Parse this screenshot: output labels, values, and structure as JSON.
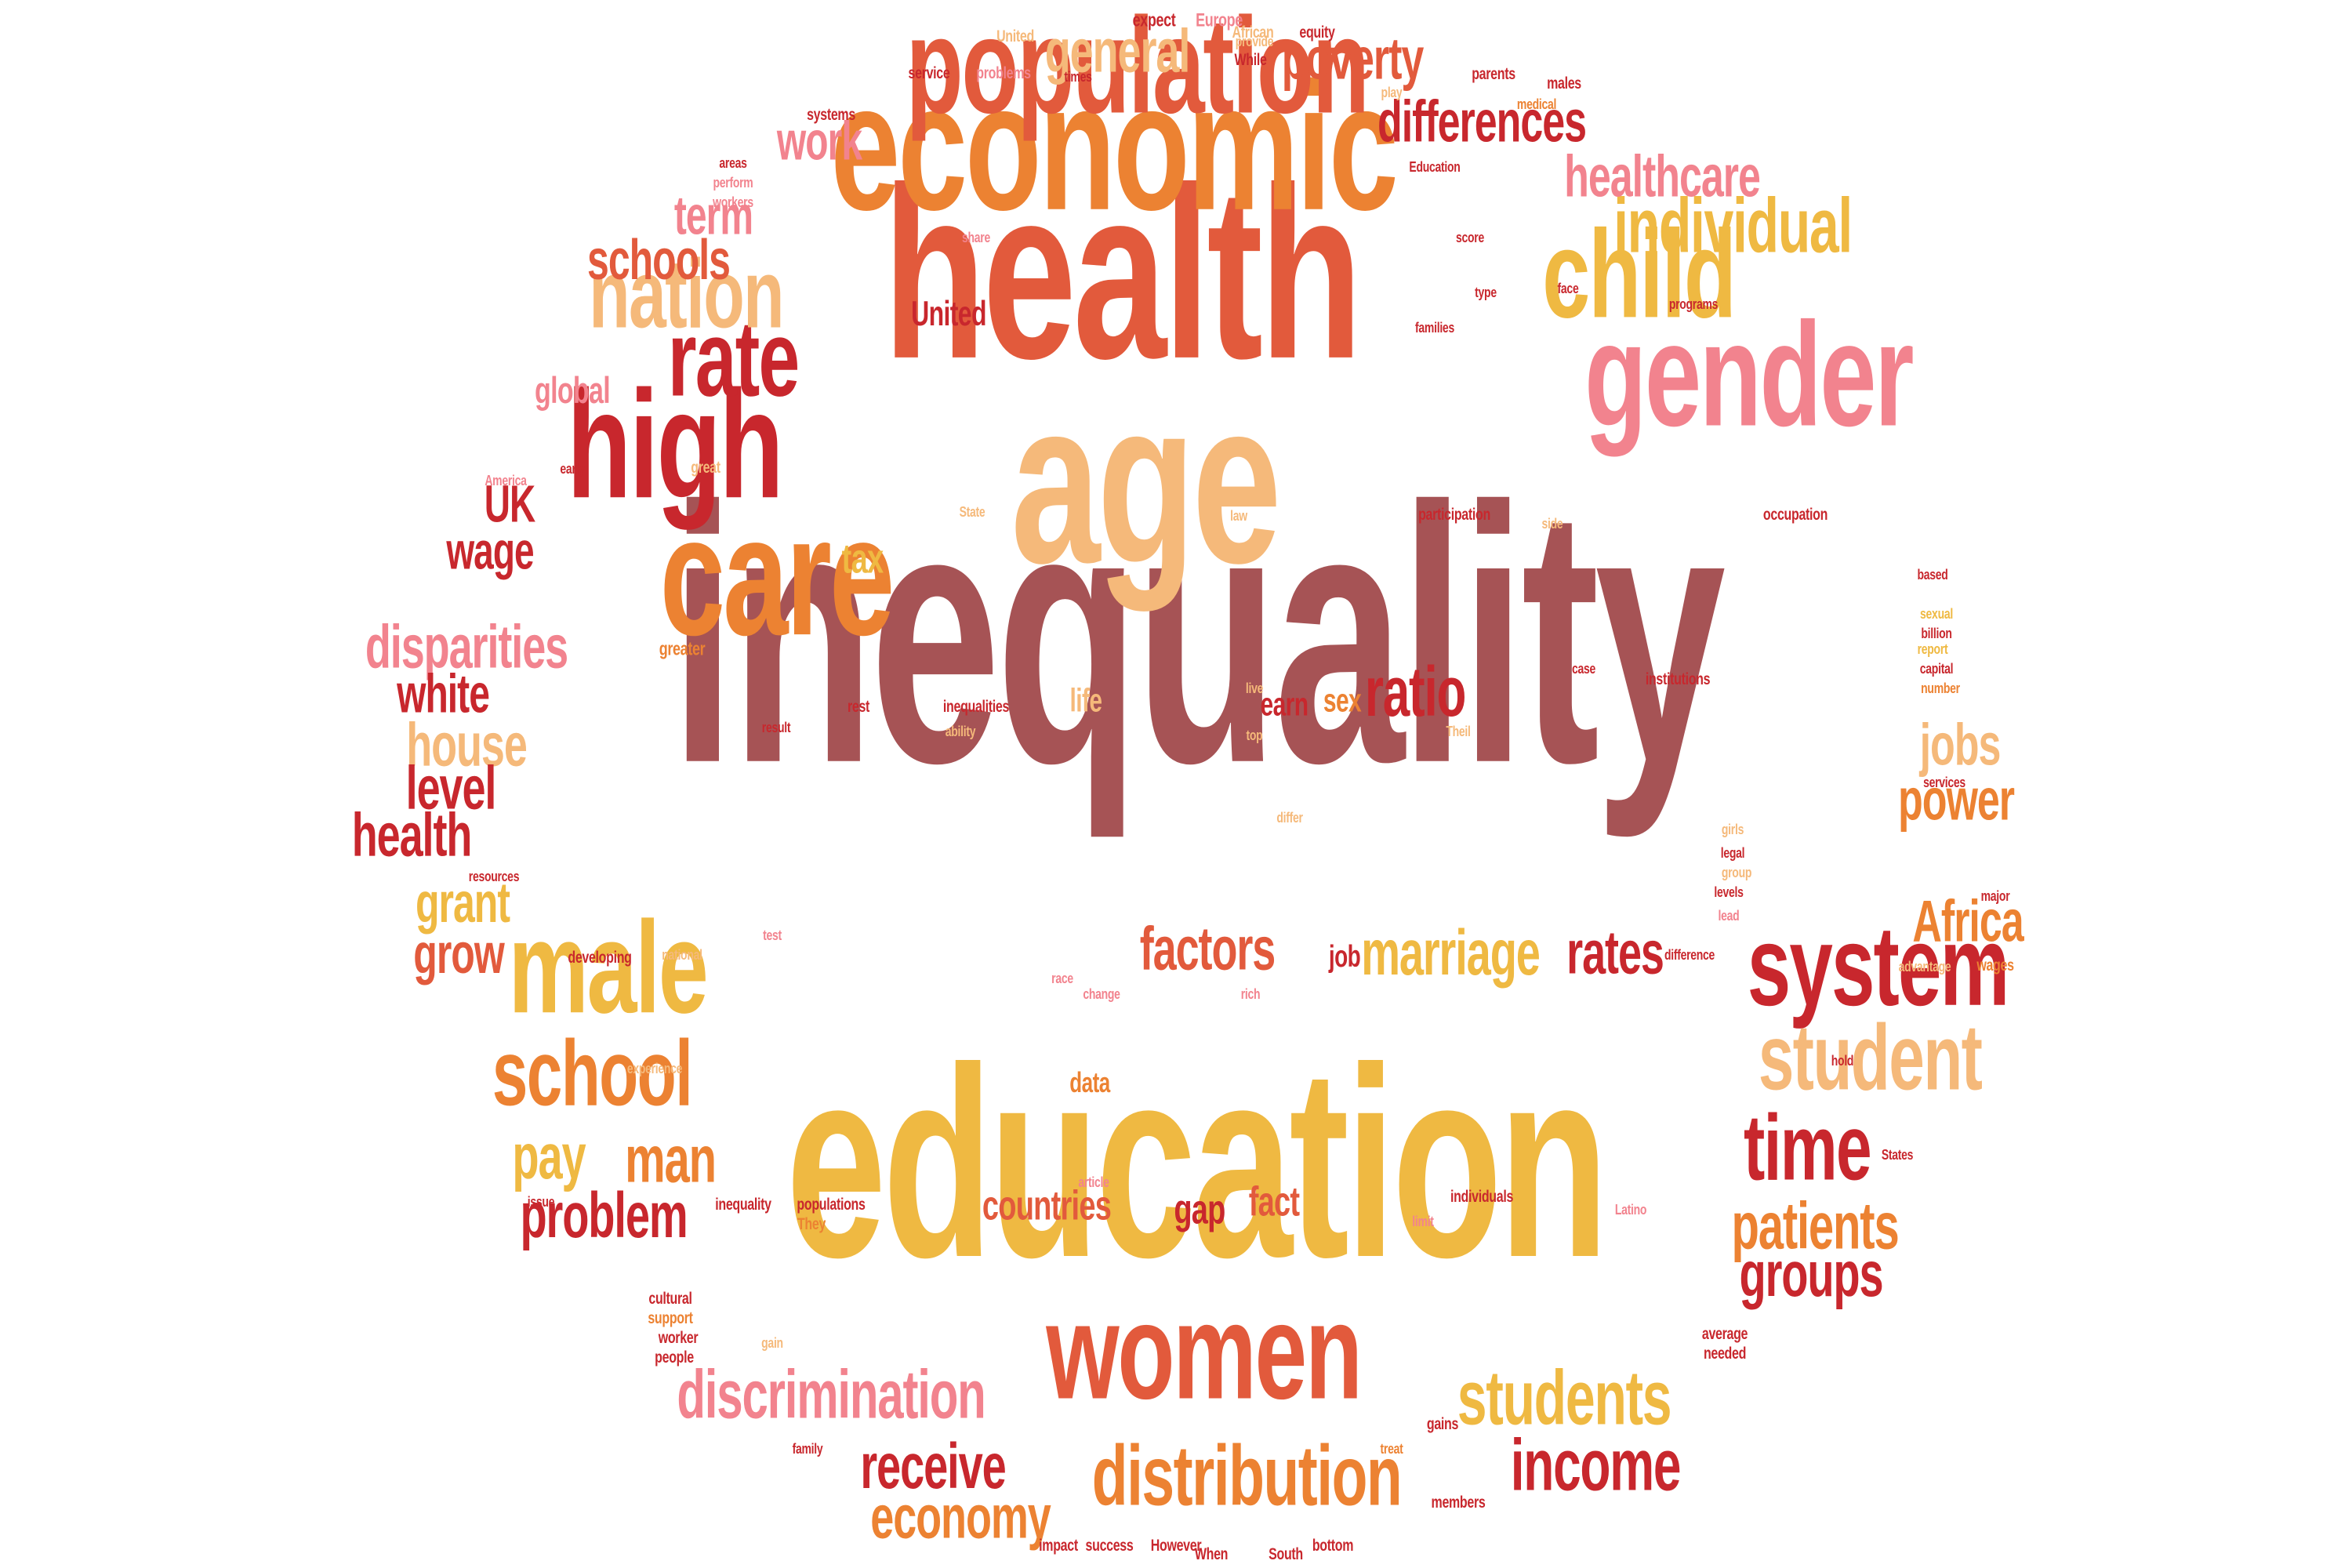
{
  "colors": {
    "maroon": "#a65355",
    "red": "#c8272d",
    "vermilion": "#e25a3c",
    "orange": "#ec8232",
    "yellow": "#efb942",
    "peach": "#f5b97a",
    "pink": "#f2838e"
  },
  "words": [
    {
      "text": "inequality",
      "color": "maroon",
      "weight": 1.0
    },
    {
      "text": "education",
      "color": "yellow",
      "weight": 0.78
    },
    {
      "text": "health",
      "color": "vermilion",
      "weight": 0.72
    },
    {
      "text": "age",
      "color": "peach",
      "weight": 0.65
    },
    {
      "text": "economic",
      "color": "orange",
      "weight": 0.55
    },
    {
      "text": "gender",
      "color": "pink",
      "weight": 0.46
    },
    {
      "text": "care",
      "color": "orange",
      "weight": 0.45
    },
    {
      "text": "high",
      "color": "red",
      "weight": 0.44
    },
    {
      "text": "population",
      "color": "vermilion",
      "weight": 0.4
    },
    {
      "text": "women",
      "color": "vermilion",
      "weight": 0.39
    },
    {
      "text": "male",
      "color": "yellow",
      "weight": 0.38
    },
    {
      "text": "child",
      "color": "yellow",
      "weight": 0.36
    },
    {
      "text": "system",
      "color": "red",
      "weight": 0.34
    },
    {
      "text": "rate",
      "color": "red",
      "weight": 0.31
    },
    {
      "text": "nation",
      "color": "peach",
      "weight": 0.29
    },
    {
      "text": "school",
      "color": "orange",
      "weight": 0.28
    },
    {
      "text": "student",
      "color": "peach",
      "weight": 0.28
    },
    {
      "text": "time",
      "color": "red",
      "weight": 0.27
    },
    {
      "text": "distribution",
      "color": "orange",
      "weight": 0.26
    },
    {
      "text": "students",
      "color": "yellow",
      "weight": 0.24
    },
    {
      "text": "individual",
      "color": "yellow",
      "weight": 0.22
    },
    {
      "text": "income",
      "color": "red",
      "weight": 0.22
    },
    {
      "text": "discrimination",
      "color": "pink",
      "weight": 0.2
    },
    {
      "text": "factors",
      "color": "vermilion",
      "weight": 0.2
    },
    {
      "text": "marriage",
      "color": "yellow",
      "weight": 0.2
    },
    {
      "text": "ratio",
      "color": "red",
      "weight": 0.21
    },
    {
      "text": "patients",
      "color": "orange",
      "weight": 0.2
    },
    {
      "text": "man",
      "color": "orange",
      "weight": 0.2
    },
    {
      "text": "disparities",
      "color": "pink",
      "weight": 0.18
    },
    {
      "text": "house",
      "color": "peach",
      "weight": 0.18
    },
    {
      "text": "level",
      "color": "red",
      "weight": 0.17
    },
    {
      "text": "health",
      "color": "red",
      "weight": 0.18
    },
    {
      "text": "general",
      "color": "peach",
      "weight": 0.18
    },
    {
      "text": "poverty",
      "color": "vermilion",
      "weight": 0.17
    },
    {
      "text": "differences",
      "color": "red",
      "weight": 0.17
    },
    {
      "text": "healthcare",
      "color": "pink",
      "weight": 0.17
    },
    {
      "text": "schools",
      "color": "vermilion",
      "weight": 0.15
    },
    {
      "text": "term",
      "color": "pink",
      "weight": 0.15
    },
    {
      "text": "work",
      "color": "pink",
      "weight": 0.15
    },
    {
      "text": "UK",
      "color": "red",
      "weight": 0.15
    },
    {
      "text": "wage",
      "color": "red",
      "weight": 0.15
    },
    {
      "text": "white",
      "color": "red",
      "weight": 0.14
    },
    {
      "text": "grant",
      "color": "yellow",
      "weight": 0.15
    },
    {
      "text": "grow",
      "color": "vermilion",
      "weight": 0.15
    },
    {
      "text": "jobs",
      "color": "peach",
      "weight": 0.16
    },
    {
      "text": "power",
      "color": "orange",
      "weight": 0.16
    },
    {
      "text": "Africa",
      "color": "orange",
      "weight": 0.16
    },
    {
      "text": "rates",
      "color": "red",
      "weight": 0.16
    },
    {
      "text": "receive",
      "color": "red",
      "weight": 0.16
    },
    {
      "text": "economy",
      "color": "orange",
      "weight": 0.16
    },
    {
      "text": "problem",
      "color": "red",
      "weight": 0.16
    },
    {
      "text": "pay",
      "color": "yellow",
      "weight": 0.16
    },
    {
      "text": "groups",
      "color": "red",
      "weight": 0.16
    },
    {
      "text": "tax",
      "color": "yellow",
      "weight": 0.1
    },
    {
      "text": "countries",
      "color": "vermilion",
      "weight": 0.1
    },
    {
      "text": "gap",
      "color": "red",
      "weight": 0.1
    },
    {
      "text": "fact",
      "color": "vermilion",
      "weight": 0.1
    },
    {
      "text": "United",
      "color": "red",
      "weight": 0.09
    },
    {
      "text": "global",
      "color": "pink",
      "weight": 0.09
    },
    {
      "text": "earn",
      "color": "red",
      "weight": 0.09
    },
    {
      "text": "sex",
      "color": "orange",
      "weight": 0.09
    },
    {
      "text": "life",
      "color": "peach",
      "weight": 0.09
    },
    {
      "text": "job",
      "color": "red",
      "weight": 0.08
    },
    {
      "text": "data",
      "color": "orange",
      "weight": 0.06
    },
    {
      "text": "expect",
      "color": "red",
      "weight": 0.04
    },
    {
      "text": "Europe",
      "color": "pink",
      "weight": 0.04
    },
    {
      "text": "United",
      "color": "peach",
      "weight": 0.035
    },
    {
      "text": "African",
      "color": "peach",
      "weight": 0.035
    },
    {
      "text": "equity",
      "color": "red",
      "weight": 0.035
    },
    {
      "text": "service",
      "color": "red",
      "weight": 0.035
    },
    {
      "text": "problems",
      "color": "pink",
      "weight": 0.035
    },
    {
      "text": "times",
      "color": "red",
      "weight": 0.03
    },
    {
      "text": "While",
      "color": "red",
      "weight": 0.035
    },
    {
      "text": "provide",
      "color": "peach",
      "weight": 0.035
    },
    {
      "text": "parents",
      "color": "red",
      "weight": 0.035
    },
    {
      "text": "males",
      "color": "red",
      "weight": 0.035
    },
    {
      "text": "play",
      "color": "peach",
      "weight": 0.03
    },
    {
      "text": "medical",
      "color": "orange",
      "weight": 0.03
    },
    {
      "text": "systems",
      "color": "red",
      "weight": 0.035
    },
    {
      "text": "areas",
      "color": "red",
      "weight": 0.03
    },
    {
      "text": "perform",
      "color": "pink",
      "weight": 0.03
    },
    {
      "text": "workers",
      "color": "pink",
      "weight": 0.03
    },
    {
      "text": "Education",
      "color": "red",
      "weight": 0.03
    },
    {
      "text": "share",
      "color": "pink",
      "weight": 0.03
    },
    {
      "text": "score",
      "color": "red",
      "weight": 0.03
    },
    {
      "text": "type",
      "color": "red",
      "weight": 0.03
    },
    {
      "text": "face",
      "color": "red",
      "weight": 0.03
    },
    {
      "text": "families",
      "color": "red",
      "weight": 0.03
    },
    {
      "text": "programs",
      "color": "red",
      "weight": 0.03
    },
    {
      "text": "America",
      "color": "pink",
      "weight": 0.03
    },
    {
      "text": "early",
      "color": "red",
      "weight": 0.03
    },
    {
      "text": "great",
      "color": "peach",
      "weight": 0.03
    },
    {
      "text": "State",
      "color": "peach",
      "weight": 0.03
    },
    {
      "text": "law",
      "color": "peach",
      "weight": 0.03
    },
    {
      "text": "participation",
      "color": "red",
      "weight": 0.03
    },
    {
      "text": "side",
      "color": "peach",
      "weight": 0.03
    },
    {
      "text": "occupation",
      "color": "red",
      "weight": 0.03
    },
    {
      "text": "based",
      "color": "red",
      "weight": 0.03
    },
    {
      "text": "sexual",
      "color": "yellow",
      "weight": 0.03
    },
    {
      "text": "billion",
      "color": "red",
      "weight": 0.03
    },
    {
      "text": "report",
      "color": "yellow",
      "weight": 0.03
    },
    {
      "text": "capital",
      "color": "red",
      "weight": 0.03
    },
    {
      "text": "number",
      "color": "orange",
      "weight": 0.03
    },
    {
      "text": "greater",
      "color": "orange",
      "weight": 0.03
    },
    {
      "text": "case",
      "color": "red",
      "weight": 0.03
    },
    {
      "text": "institutions",
      "color": "red",
      "weight": 0.03
    },
    {
      "text": "rest",
      "color": "red",
      "weight": 0.03
    },
    {
      "text": "inequalities",
      "color": "red",
      "weight": 0.03
    },
    {
      "text": "live",
      "color": "peach",
      "weight": 0.03
    },
    {
      "text": "result",
      "color": "red",
      "weight": 0.03
    },
    {
      "text": "ability",
      "color": "peach",
      "weight": 0.03
    },
    {
      "text": "top",
      "color": "peach",
      "weight": 0.03
    },
    {
      "text": "Theil",
      "color": "peach",
      "weight": 0.03
    },
    {
      "text": "services",
      "color": "red",
      "weight": 0.03
    },
    {
      "text": "resources",
      "color": "red",
      "weight": 0.03
    },
    {
      "text": "differ",
      "color": "peach",
      "weight": 0.03
    },
    {
      "text": "girls",
      "color": "peach",
      "weight": 0.03
    },
    {
      "text": "legal",
      "color": "red",
      "weight": 0.03
    },
    {
      "text": "group",
      "color": "peach",
      "weight": 0.03
    },
    {
      "text": "levels",
      "color": "red",
      "weight": 0.03
    },
    {
      "text": "lead",
      "color": "pink",
      "weight": 0.03
    },
    {
      "text": "test",
      "color": "pink",
      "weight": 0.03
    },
    {
      "text": "difference",
      "color": "red",
      "weight": 0.03
    },
    {
      "text": "developing",
      "color": "red",
      "weight": 0.03
    },
    {
      "text": "national",
      "color": "peach",
      "weight": 0.03
    },
    {
      "text": "major",
      "color": "red",
      "weight": 0.03
    },
    {
      "text": "advantage",
      "color": "peach",
      "weight": 0.03
    },
    {
      "text": "wages",
      "color": "orange",
      "weight": 0.03
    },
    {
      "text": "race",
      "color": "pink",
      "weight": 0.03
    },
    {
      "text": "change",
      "color": "pink",
      "weight": 0.03
    },
    {
      "text": "rich",
      "color": "pink",
      "weight": 0.03
    },
    {
      "text": "hold",
      "color": "red",
      "weight": 0.03
    },
    {
      "text": "experience",
      "color": "peach",
      "weight": 0.03
    },
    {
      "text": "article",
      "color": "pink",
      "weight": 0.03
    },
    {
      "text": "States",
      "color": "red",
      "weight": 0.03
    },
    {
      "text": "issue",
      "color": "red",
      "weight": 0.03
    },
    {
      "text": "inequality",
      "color": "red",
      "weight": 0.03
    },
    {
      "text": "populations",
      "color": "red",
      "weight": 0.03
    },
    {
      "text": "They",
      "color": "orange",
      "weight": 0.03
    },
    {
      "text": "individuals",
      "color": "red",
      "weight": 0.03
    },
    {
      "text": "limit",
      "color": "pink",
      "weight": 0.03
    },
    {
      "text": "Latino",
      "color": "pink",
      "weight": 0.03
    },
    {
      "text": "cultural",
      "color": "red",
      "weight": 0.03
    },
    {
      "text": "support",
      "color": "orange",
      "weight": 0.03
    },
    {
      "text": "worker",
      "color": "red",
      "weight": 0.03
    },
    {
      "text": "people",
      "color": "red",
      "weight": 0.03
    },
    {
      "text": "average",
      "color": "red",
      "weight": 0.03
    },
    {
      "text": "needed",
      "color": "red",
      "weight": 0.03
    },
    {
      "text": "gain",
      "color": "peach",
      "weight": 0.03
    },
    {
      "text": "gains",
      "color": "red",
      "weight": 0.03
    },
    {
      "text": "treat",
      "color": "orange",
      "weight": 0.03
    },
    {
      "text": "family",
      "color": "red",
      "weight": 0.03
    },
    {
      "text": "members",
      "color": "red",
      "weight": 0.03
    },
    {
      "text": "impact",
      "color": "red",
      "weight": 0.03
    },
    {
      "text": "success",
      "color": "red",
      "weight": 0.03
    },
    {
      "text": "However",
      "color": "red",
      "weight": 0.03
    },
    {
      "text": "bottom",
      "color": "red",
      "weight": 0.03
    },
    {
      "text": "When",
      "color": "red",
      "weight": 0.03
    },
    {
      "text": "South",
      "color": "red",
      "weight": 0.03
    }
  ]
}
